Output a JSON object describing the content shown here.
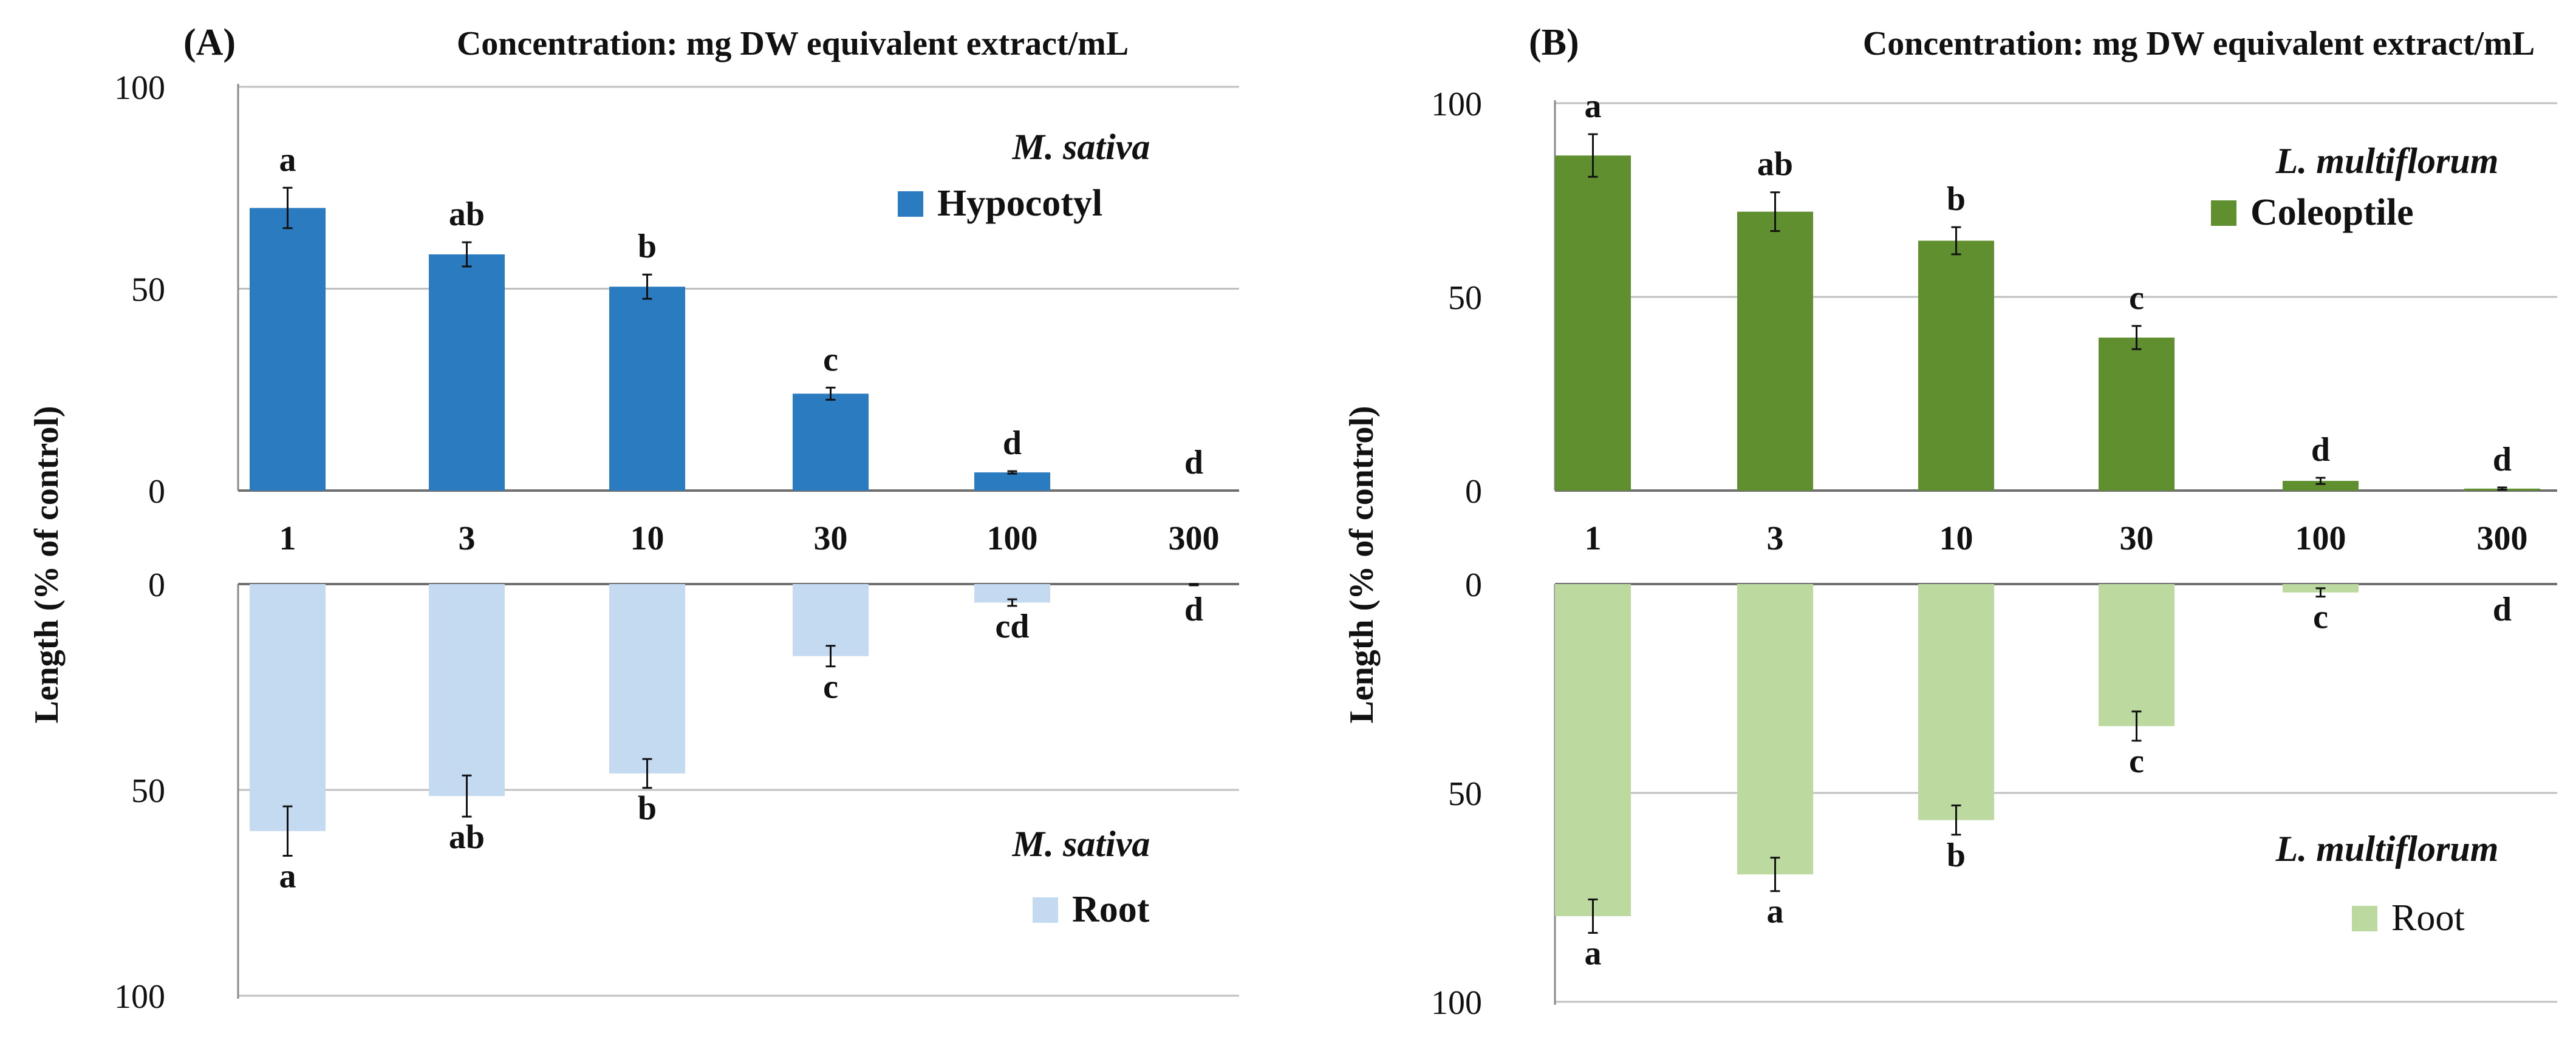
{
  "figure": {
    "shared_xlabel": "Concentration: mg DW equivalent extract/mL",
    "shared_ylabel": "Length (% of control)"
  },
  "chart_data": [
    {
      "type": "bar",
      "panel_label": "(A)",
      "title": "Concentration: mg DW equivalent extract/mL",
      "categories": [
        "1",
        "3",
        "10",
        "30",
        "100",
        "300"
      ],
      "ylabel": "Length (% of control)",
      "colors": {
        "shoot": "#2a7bc0",
        "root": "#c3daf1"
      },
      "top": {
        "species": "M. sativa",
        "legend": "Hypocotyl",
        "ylim": [
          0,
          100
        ],
        "yticks": [
          "0",
          "50",
          "100"
        ],
        "values": [
          70,
          58.5,
          50.5,
          24,
          4.5,
          0
        ],
        "errors": [
          5,
          3,
          3,
          1.5,
          0.3,
          0
        ],
        "letters": [
          "a",
          "ab",
          "b",
          "c",
          "d",
          "d"
        ]
      },
      "bottom": {
        "species": "M. sativa",
        "legend": "Root",
        "ylim": [
          0,
          100
        ],
        "yticks": [
          "0",
          "50",
          "100"
        ],
        "values": [
          60,
          51.5,
          46,
          17.5,
          4.5,
          0
        ],
        "errors": [
          6,
          5,
          3.5,
          2.5,
          0.8,
          0.3
        ],
        "letters": [
          "a",
          "ab",
          "b",
          "c",
          "cd",
          "d"
        ]
      }
    },
    {
      "type": "bar",
      "panel_label": "(B)",
      "title": "Concentration: mg DW equivalent extract/mL",
      "categories": [
        "1",
        "3",
        "10",
        "30",
        "100",
        "300"
      ],
      "ylabel": "Length (% of control)",
      "colors": {
        "shoot": "#5f8f2e",
        "root": "#bcd9a0"
      },
      "top": {
        "species": "L. multiflorum",
        "legend": "Coleoptile",
        "ylim": [
          0,
          100
        ],
        "yticks": [
          "0",
          "50",
          "100"
        ],
        "values": [
          86.5,
          72,
          64.5,
          39.5,
          2.5,
          0.5
        ],
        "errors": [
          5.5,
          5,
          3.5,
          3,
          0.8,
          0.3
        ],
        "letters": [
          "a",
          "ab",
          "b",
          "c",
          "d",
          "d"
        ]
      },
      "bottom": {
        "species": "L. multiflorum",
        "legend": "Root",
        "ylim": [
          0,
          100
        ],
        "yticks": [
          "0",
          "50",
          "100"
        ],
        "values": [
          79.5,
          69.5,
          56.5,
          34,
          2,
          0
        ],
        "errors": [
          4,
          4,
          3.5,
          3.5,
          1,
          0
        ],
        "letters": [
          "a",
          "a",
          "b",
          "c",
          "c",
          "d"
        ]
      }
    }
  ]
}
